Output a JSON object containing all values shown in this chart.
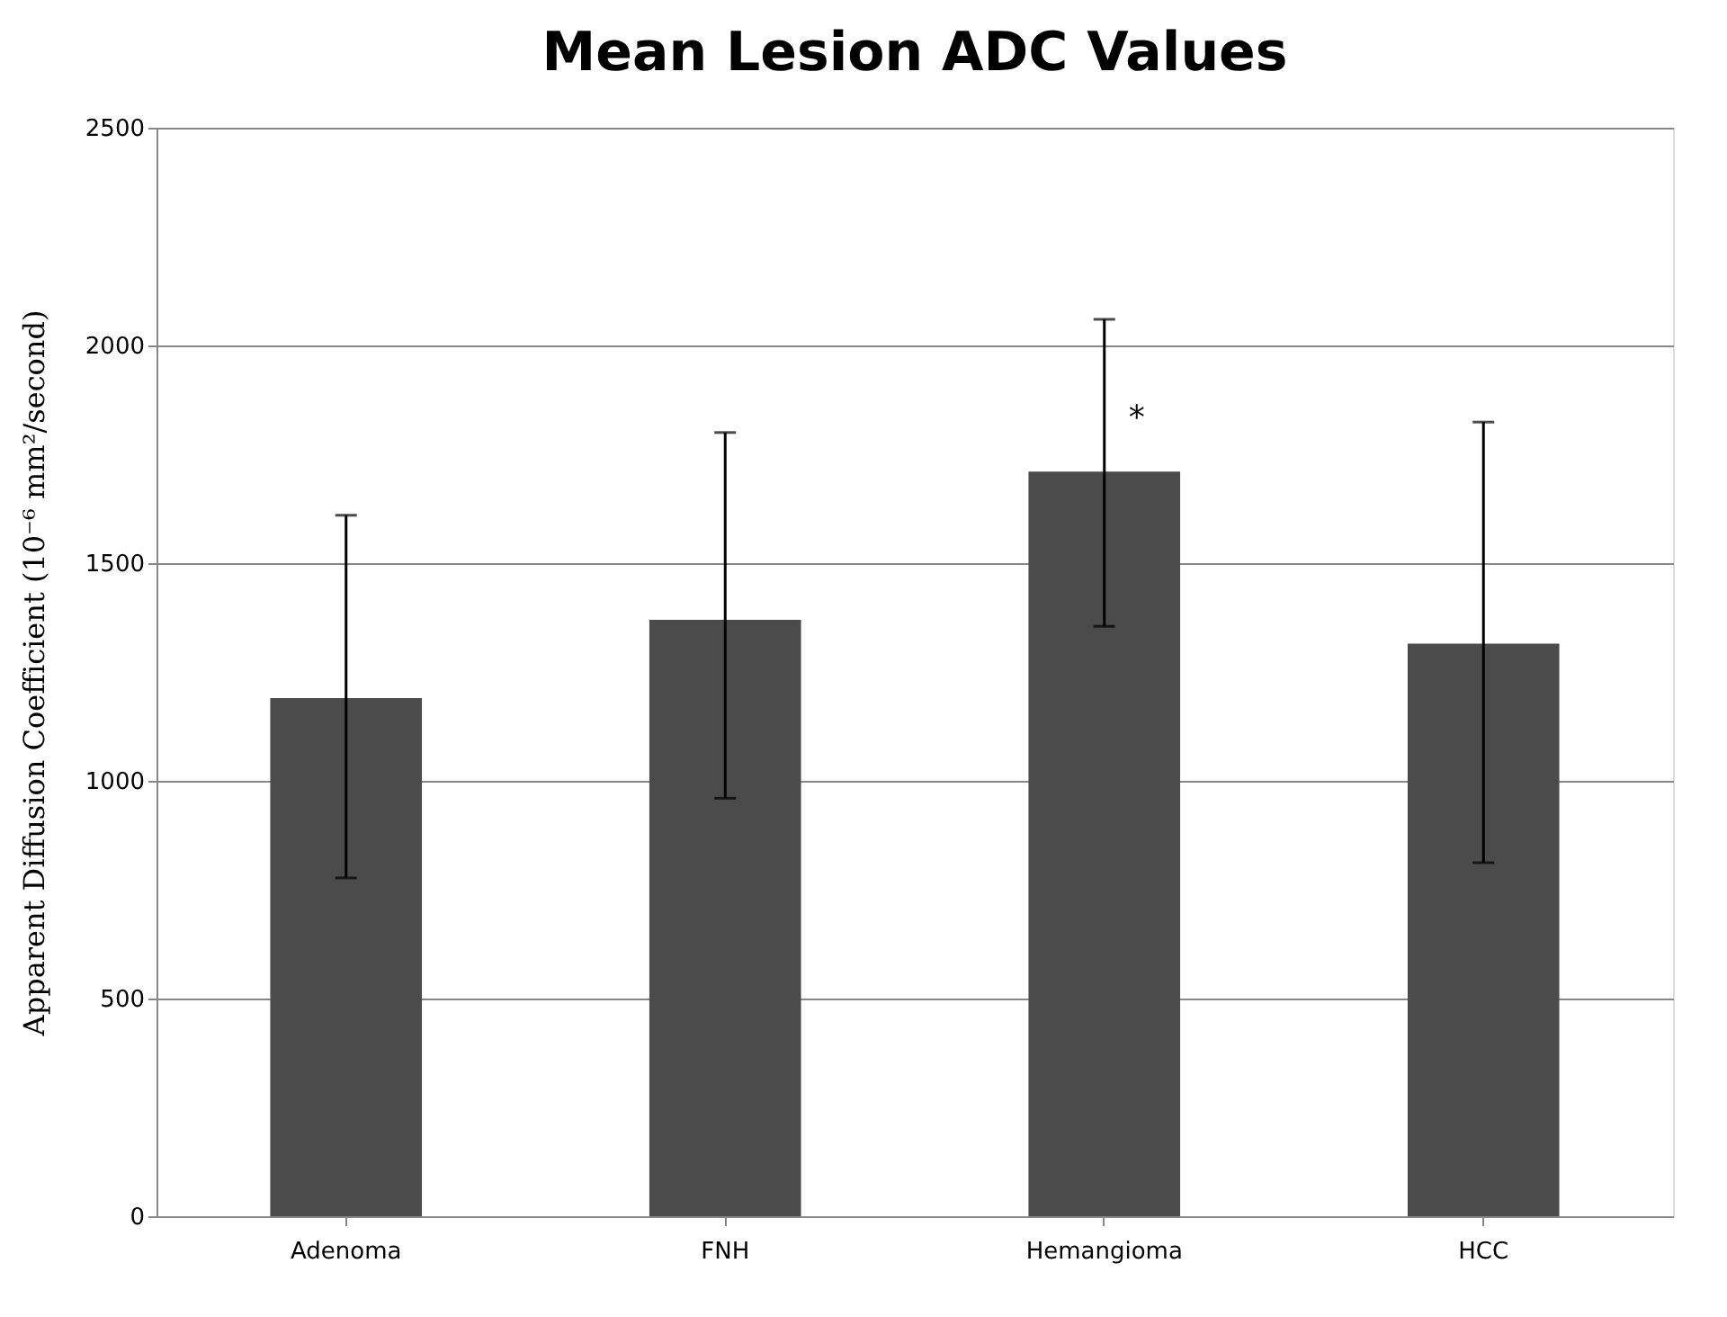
{
  "chart_data": {
    "type": "bar",
    "title": "Mean Lesion ADC Values",
    "ylabel": "Apparent Diffusion Coefficient (10⁻⁶ mm²/second)",
    "categories": [
      "Adenoma",
      "FNH",
      "Hemangioma",
      "HCC"
    ],
    "values": [
      1190,
      1370,
      1710,
      1315
    ],
    "errors": [
      [
        777,
        1610
      ],
      [
        960,
        1800
      ],
      [
        1355,
        2060
      ],
      [
        812,
        1824
      ]
    ],
    "color": "#4b4b4b",
    "ylim": [
      0,
      2500
    ],
    "yticks": [
      0,
      500,
      1000,
      1500,
      2000,
      2500
    ],
    "grid": "y",
    "annotations": [
      {
        "text": "*",
        "x": "Hemangioma",
        "y": 1830
      }
    ]
  }
}
